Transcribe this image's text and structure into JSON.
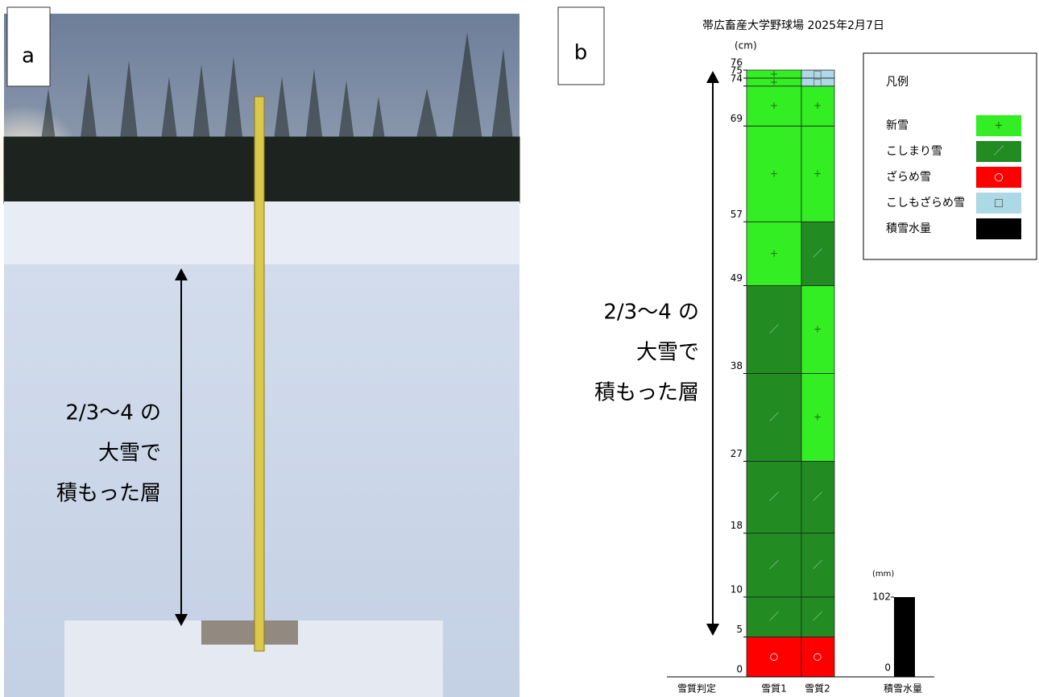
{
  "photo": {
    "label": "a",
    "annotation": [
      "2/3〜4 の",
      "大雪で",
      "積もった層"
    ]
  },
  "chart_data": {
    "type": "snow-profile",
    "panel_label": "b",
    "title": "帯広畜産大学野球場 2025年2月7日",
    "y_unit": "(cm)",
    "ylim": [
      0,
      76
    ],
    "yticks": [
      0,
      5,
      10,
      18,
      27,
      38,
      49,
      57,
      69,
      74,
      75,
      76
    ],
    "categories": [
      "雪質判定",
      "雪質1",
      "雪質2"
    ],
    "layers": [
      {
        "from": 0,
        "to": 5,
        "types": [
          "ざらめ雪",
          "ざらめ雪"
        ]
      },
      {
        "from": 5,
        "to": 10,
        "types": [
          "こしまり雪",
          "こしまり雪"
        ]
      },
      {
        "from": 10,
        "to": 18,
        "types": [
          "こしまり雪",
          "こしまり雪"
        ]
      },
      {
        "from": 18,
        "to": 27,
        "types": [
          "こしまり雪",
          "こしまり雪"
        ]
      },
      {
        "from": 27,
        "to": 38,
        "types": [
          "こしまり雪",
          "新雪"
        ]
      },
      {
        "from": 38,
        "to": 49,
        "types": [
          "こしまり雪",
          "新雪"
        ]
      },
      {
        "from": 49,
        "to": 57,
        "types": [
          "新雪",
          "こしまり雪"
        ]
      },
      {
        "from": 57,
        "to": 69,
        "types": [
          "新雪",
          "新雪"
        ]
      },
      {
        "from": 69,
        "to": 74,
        "types": [
          "新雪",
          "新雪"
        ]
      },
      {
        "from": 74,
        "to": 75,
        "types": [
          "新雪",
          "こしもざらめ雪"
        ]
      },
      {
        "from": 75,
        "to": 76,
        "types": [
          "新雪",
          "こしもざらめ雪"
        ]
      }
    ],
    "water": {
      "label": "積雪水量",
      "unit": "(mm)",
      "value": 102,
      "color": "#000000",
      "ylim": [
        0,
        776
      ],
      "yticks": [
        0,
        102
      ]
    },
    "annotation": [
      "2/3〜4 の",
      "大雪で",
      "積もった層"
    ],
    "legend": {
      "title": "凡例",
      "items": [
        {
          "name": "新雪",
          "color": "#33ee22",
          "symbol": "+",
          "symbol_color": "#1b6e12"
        },
        {
          "name": "こしまり雪",
          "color": "#228b22",
          "symbol": "／",
          "symbol_color": "#a8dca8"
        },
        {
          "name": "ざらめ雪",
          "color": "#ff0000",
          "symbol": "○",
          "symbol_color": "#ffffff"
        },
        {
          "name": "こしもざらめ雪",
          "color": "#add8e6",
          "symbol": "□",
          "symbol_color": "#555555"
        },
        {
          "name": "積雪水量",
          "color": "#000000",
          "symbol": null,
          "symbol_color": null
        }
      ]
    }
  }
}
